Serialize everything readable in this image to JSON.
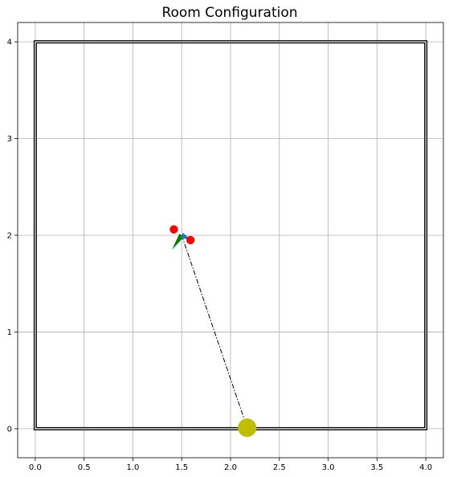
{
  "chart_data": {
    "type": "scatter",
    "title": "Room Configuration",
    "xlabel": "",
    "ylabel": "",
    "xlim": [
      -0.18,
      4.18
    ],
    "ylim": [
      -0.3,
      4.2
    ],
    "grid": true,
    "x_ticks": [
      0.0,
      0.5,
      1.0,
      1.5,
      2.0,
      2.5,
      3.0,
      3.5,
      4.0
    ],
    "x_tick_labels": [
      "0.0",
      "0.5",
      "1.0",
      "1.5",
      "2.0",
      "2.5",
      "3.0",
      "3.5",
      "4.0"
    ],
    "y_ticks": [
      0,
      1,
      2,
      3,
      4
    ],
    "y_tick_labels": [
      "0",
      "1",
      "2",
      "3",
      "4"
    ],
    "room": {
      "corners": [
        [
          0,
          0
        ],
        [
          4,
          0
        ],
        [
          4,
          4
        ],
        [
          0,
          4
        ]
      ],
      "color": "#000000"
    },
    "microphones": {
      "points": [
        [
          1.42,
          2.06
        ],
        [
          1.59,
          1.95
        ]
      ],
      "color": "#ff0000"
    },
    "array_center": [
      1.5,
      2.0
    ],
    "array_direction": {
      "origin": [
        1.5,
        2.0
      ],
      "tip": [
        1.6,
        1.95
      ],
      "color": "#1f77b4"
    },
    "doa_estimate": {
      "origin": [
        1.5,
        2.0
      ],
      "tip": [
        1.4,
        1.85
      ],
      "color": "#008000"
    },
    "source": {
      "point": [
        2.17,
        0.01
      ],
      "color": "#bfbf00"
    },
    "source_line": {
      "from": [
        1.5,
        2.0
      ],
      "to": [
        2.17,
        0.01
      ],
      "color": "#000000"
    }
  }
}
